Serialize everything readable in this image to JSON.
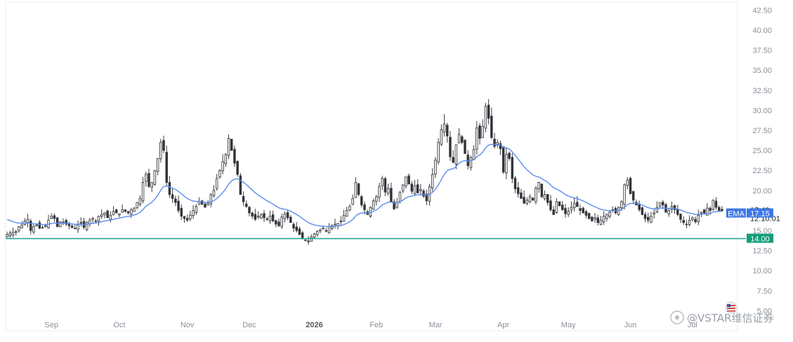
{
  "chart_data": {
    "type": "candlestick",
    "indicator": "EMA",
    "y_ticks": [
      "42.50",
      "40.00",
      "37.50",
      "35.00",
      "32.50",
      "30.00",
      "27.50",
      "25.00",
      "22.50",
      "20.00",
      "17.50",
      "15.00",
      "12.50",
      "10.00",
      "7.50",
      "5.00"
    ],
    "y_range": [
      2.5,
      43.5
    ],
    "x_ticks": [
      {
        "label": "Sep",
        "index": 15,
        "bold": false
      },
      {
        "label": "Oct",
        "index": 38,
        "bold": false
      },
      {
        "label": "Nov",
        "index": 61,
        "bold": false
      },
      {
        "label": "Dec",
        "index": 82,
        "bold": false
      },
      {
        "label": "2026",
        "index": 104,
        "bold": true
      },
      {
        "label": "Feb",
        "index": 125,
        "bold": false
      },
      {
        "label": "Mar",
        "index": 145,
        "bold": false
      },
      {
        "label": "Apr",
        "index": 168,
        "bold": false
      },
      {
        "label": "May",
        "index": 190,
        "bold": false
      },
      {
        "label": "Jun",
        "index": 211,
        "bold": false
      },
      {
        "label": "Jul",
        "index": 232,
        "bold": false
      }
    ],
    "last_price": {
      "value": 17.49,
      "label": "17.49",
      "time": "12:10:01"
    },
    "ema_label": {
      "text": "EMA",
      "value": "17.15"
    },
    "hline": {
      "value": 14.0,
      "label": "14.00",
      "color": "#26a69a"
    },
    "ema_color": "#5b8def",
    "close": [
      14.5,
      14.7,
      14.8,
      14.9,
      15.5,
      15.7,
      16.2,
      16.4,
      15.0,
      15.5,
      15.7,
      15.3,
      15.4,
      15.6,
      16.3,
      16.8,
      16.5,
      15.5,
      16.1,
      16.0,
      15.8,
      15.6,
      15.4,
      15.3,
      15.7,
      16.0,
      15.4,
      16.0,
      16.3,
      16.5,
      16.2,
      16.8,
      17.0,
      17.2,
      16.6,
      16.9,
      17.4,
      17.2,
      17.1,
      17.6,
      17.4,
      17.2,
      17.6,
      17.8,
      18.5,
      19.0,
      21.0,
      22.0,
      20.5,
      21.0,
      22.5,
      24.0,
      26.0,
      25.0,
      21.0,
      19.5,
      19.0,
      18.5,
      17.5,
      16.8,
      16.5,
      16.3,
      16.9,
      17.5,
      18.0,
      18.6,
      18.3,
      17.9,
      18.4,
      19.5,
      20.0,
      21.5,
      22.5,
      23.6,
      24.5,
      26.5,
      25.0,
      23.4,
      22.0,
      19.5,
      18.6,
      18.0,
      17.2,
      16.8,
      16.4,
      16.8,
      17.0,
      16.6,
      16.4,
      16.8,
      16.2,
      15.8,
      15.6,
      16.7,
      17.1,
      16.6,
      16.0,
      15.3,
      15.0,
      14.5,
      14.0,
      13.8,
      13.6,
      14.2,
      14.6,
      14.9,
      15.1,
      15.3,
      15.0,
      15.5,
      15.6,
      15.8,
      15.9,
      16.1,
      16.9,
      17.5,
      18.0,
      19.0,
      21.0,
      19.5,
      18.2,
      17.6,
      17.0,
      17.9,
      18.7,
      19.2,
      20.5,
      21.5,
      19.8,
      20.3,
      18.6,
      17.7,
      18.5,
      19.8,
      20.7,
      21.7,
      20.8,
      19.9,
      20.6,
      19.7,
      20.1,
      19.3,
      18.7,
      20.5,
      22.0,
      23.8,
      26.0,
      27.6,
      28.3,
      26.8,
      24.2,
      23.5,
      25.7,
      27.0,
      26.0,
      24.6,
      23.1,
      24.1,
      25.1,
      27.8,
      26.5,
      28.0,
      30.5,
      29.0,
      26.6,
      25.5,
      26.0,
      25.2,
      22.3,
      24.5,
      24.0,
      21.5,
      20.2,
      19.6,
      19.0,
      18.4,
      18.8,
      19.2,
      18.8,
      20.3,
      21.0,
      19.2,
      19.5,
      18.5,
      17.6,
      17.0,
      18.6,
      18.1,
      17.6,
      17.1,
      17.4,
      17.9,
      18.4,
      18.0,
      17.5,
      17.2,
      16.9,
      16.5,
      16.2,
      16.6,
      16.0,
      16.3,
      16.8,
      17.0,
      17.3,
      17.6,
      17.2,
      17.9,
      18.6,
      20.7,
      21.3,
      19.6,
      18.8,
      18.2,
      17.6,
      17.0,
      16.5,
      16.3,
      16.8,
      17.2,
      17.9,
      18.5,
      18.2,
      17.3,
      17.5,
      18.0,
      17.6,
      17.0,
      16.4,
      16.0,
      15.8,
      16.3,
      16.6,
      16.1,
      16.9,
      17.3,
      17.2,
      17.8,
      17.5,
      18.8,
      17.9,
      17.5,
      17.49
    ]
  }
}
